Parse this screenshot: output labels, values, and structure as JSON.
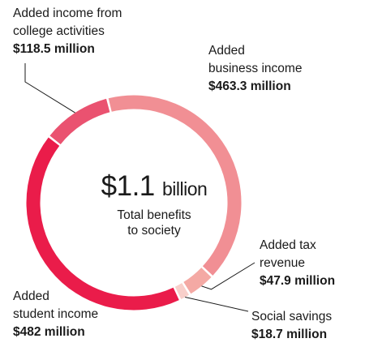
{
  "chart_data": {
    "type": "pie",
    "variant": "donut",
    "center": {
      "amount": "$1.1",
      "unit": "billion",
      "caption_line1": "Total benefits",
      "caption_line2": "to society"
    },
    "slices": [
      {
        "key": "college",
        "label_lines": [
          "Added income from",
          "college activities"
        ],
        "value_text": "$118.5 million",
        "value": 118.5,
        "color": "#ea5270"
      },
      {
        "key": "business",
        "label_lines": [
          "Added",
          "business income"
        ],
        "value_text": "$463.3 million",
        "value": 463.3,
        "color": "#f18f94"
      },
      {
        "key": "tax",
        "label_lines": [
          "Added tax",
          "revenue"
        ],
        "value_text": "$47.9 million",
        "value": 47.9,
        "color": "#f4a9a4"
      },
      {
        "key": "social",
        "label_lines": [
          "Social savings"
        ],
        "value_text": "$18.7 million",
        "value": 18.7,
        "color": "#f8cfca"
      },
      {
        "key": "student",
        "label_lines": [
          "Added",
          "student income"
        ],
        "value_text": "$482 million",
        "value": 482,
        "color": "#ea1c4a"
      }
    ]
  }
}
